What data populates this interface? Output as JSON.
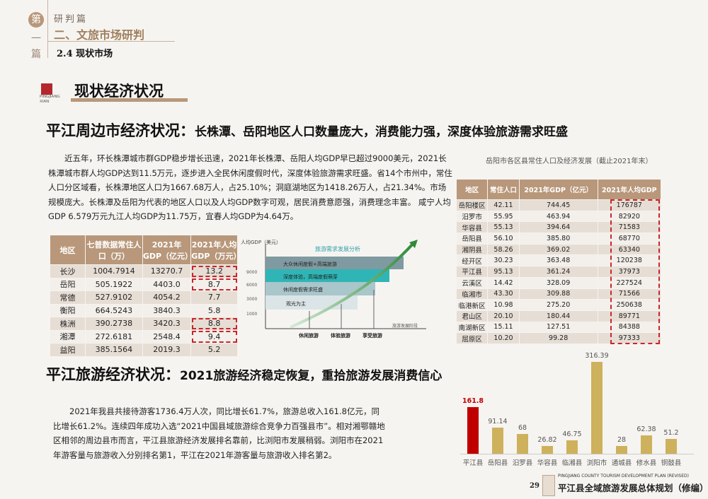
{
  "header": {
    "badge_chars": [
      "第",
      "一",
      "篇"
    ],
    "part": "研判篇",
    "chapter": "二、文旅市场研判",
    "section": "2.4 现状市场"
  },
  "logo": {
    "text": "PINGJIANG XIAN"
  },
  "subtitle": "现状经济状况",
  "section1": {
    "title_main": "平江周边市经济状况：",
    "title_rest": "长株潭、岳阳地区人口数量庞大，消费能力强，深度体验旅游需求旺盛",
    "paragraph": "近五年，环长株潭城市群GDP稳步增长迅速，2021年长株潭、岳阳人均GDP早已超过9000美元，2021长株潭城市群人均GDP达到11.5万元，逐步进入全民休闲度假时代，深度体验旅游需求旺盛。省14个市州中，常住人口分区域看，长株潭地区人口为1667.68万人，占25.10%；洞庭湖地区为1418.26万人，占21.34%。市场规模庞大。长株潭及岳阳为代表的地区人口以及人均GDP数字可观，居民消费意愿强，消费理念丰富。 咸宁人均GDP 6.579万元九江人均GDP为11.75万，宜春人均GDP为4.64万。"
  },
  "left_table": {
    "headers": [
      "地区",
      "七普数据常住人口（万）",
      "2021年GDP（亿元）",
      "2021年人均GDP（万元）"
    ],
    "rows": [
      [
        "长沙",
        "1004.7914",
        "13270.7",
        "13.2"
      ],
      [
        "岳阳",
        "505.1922",
        "4403.0",
        "8.7"
      ],
      [
        "常德",
        "527.9102",
        "4054.2",
        "7.7"
      ],
      [
        "衡阳",
        "664.5243",
        "3840.3",
        "5.8"
      ],
      [
        "株洲",
        "390.2738",
        "3420.3",
        "8.8"
      ],
      [
        "湘潭",
        "272.6181",
        "2548.4",
        "9.4"
      ],
      [
        "益阳",
        "385.1564",
        "2019.3",
        "5.2"
      ]
    ],
    "highlighted": [
      "长沙",
      "岳阳",
      "株洲",
      "湘潭"
    ]
  },
  "diagram": {
    "title": "旅游需求发展分析",
    "y_label": "人均GDP（美元）",
    "x_label": "旅游发展阶段",
    "y_ticks": [
      "9000",
      "6000",
      "3000",
      "1000"
    ],
    "bands": [
      "大众休闲度假+高端旅游",
      "深度体验，高端度假萌芽",
      "休闲度假需求旺盛",
      "观光为主"
    ],
    "stages": [
      "休闲旅游",
      "体验旅游",
      "享受旅游"
    ]
  },
  "right_table": {
    "caption": "岳阳市各区县常住人口及经济发展（截止2021年末）",
    "headers": [
      "地区",
      "常住人口",
      "2021年GDP（亿元）",
      "2021年人均GDP"
    ],
    "rows": [
      [
        "岳阳楼区",
        "42.11",
        "744.45",
        "176787"
      ],
      [
        "汨罗市",
        "55.95",
        "463.94",
        "82920"
      ],
      [
        "华容县",
        "55.13",
        "394.64",
        "71583"
      ],
      [
        "岳阳县",
        "56.10",
        "385.80",
        "68770"
      ],
      [
        "湘阴县",
        "58.26",
        "369.02",
        "63340"
      ],
      [
        "经开区",
        "30.23",
        "363.48",
        "120238"
      ],
      [
        "平江县",
        "95.13",
        "361.24",
        "37973"
      ],
      [
        "云溪区",
        "14.42",
        "328.09",
        "227524"
      ],
      [
        "临湘市",
        "43.30",
        "309.88",
        "71566"
      ],
      [
        "临港新区",
        "10.98",
        "275.20",
        "250638"
      ],
      [
        "君山区",
        "20.10",
        "180.44",
        "89771"
      ],
      [
        "南湖新区",
        "15.11",
        "127.51",
        "84388"
      ],
      [
        "屈原区",
        "10.20",
        "99.28",
        "97333"
      ]
    ]
  },
  "section2": {
    "title_main": "平江旅游经济状况：",
    "title_rest": "2021旅游经济稳定恢复，重拾旅游发展消费信心",
    "paragraph": "2021年我县共接待游客1736.4万人次，同比增长61.7%，旅游总收入161.8亿元，同比增长61.2%。连续四年成功入选“2021中国县域旅游综合竞争力百强县市”。相对湘鄂赣地区相邻的周边县市而言，平江县旅游经济发展排名靠前，比浏阳市发展稍弱。浏阳市在2021年游客量与旅游收入分别排名第1，平江在2021年游客量与旅游收入排名第2。"
  },
  "chart_data": {
    "type": "bar",
    "categories": [
      "平江县",
      "岳阳县",
      "汨罗县",
      "华容县",
      "临湘县",
      "浏阳市",
      "通城县",
      "修水县",
      "铜鼓县"
    ],
    "values": [
      161.8,
      91.14,
      68,
      26.82,
      46.75,
      316.39,
      28,
      62.38,
      51.2
    ],
    "highlight_color": "#c00000",
    "bar_color": "#cdb15c",
    "highlight_index": 0,
    "ylim": [
      0,
      316.39
    ],
    "grid": false
  },
  "footer": {
    "page": "29",
    "plan_en": "PINGJIANG COUNTY TOURISM DEVELOPMENT PLAN (REVISED)",
    "plan_cn": "平江县全域旅游发展总体规划（修编）"
  }
}
